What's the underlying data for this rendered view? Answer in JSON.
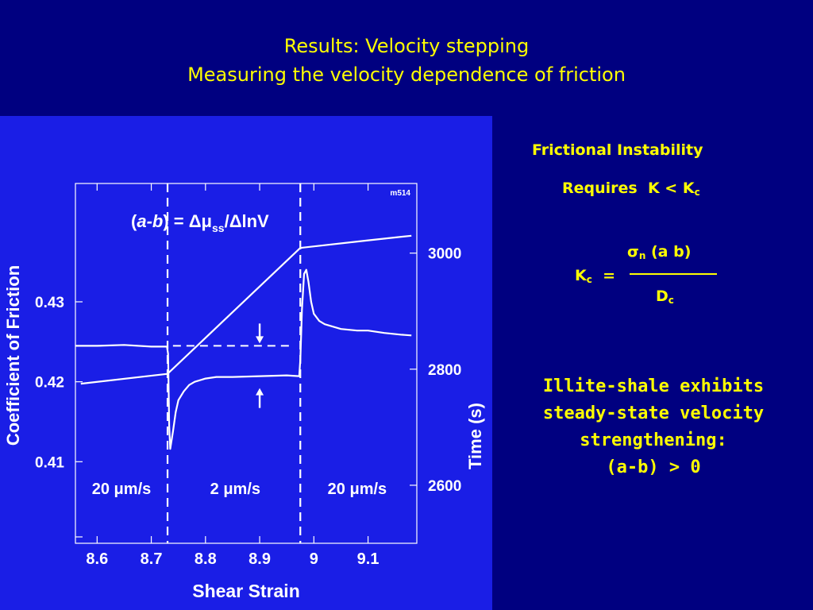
{
  "slide": {
    "title_line1": "Results:   Velocity stepping",
    "title_line2": "Measuring the velocity dependence of friction",
    "instability_title": "Frictional Instability",
    "requires_label": "Requires",
    "requires_expr": "K < K",
    "requires_sub": "c",
    "kc_numerator_glyphs": "",
    "kc_numerator_sigma": "σ",
    "kc_numerator_sigma_sub": "n",
    "kc_numerator_rest": " (a  b)",
    "kc_lhs": "K",
    "kc_lhs_sub": "c",
    "kc_equals": "=",
    "kc_denominator": "D",
    "kc_denominator_sub": "c",
    "conclusion_lines": [
      "Illite-shale exhibits",
      "steady-state velocity",
      "strengthening:",
      "(a-b) > 0"
    ],
    "colors": {
      "background": "#000080",
      "plot_background": "#1a1ee6",
      "text": "#ffff00",
      "plot_ink": "#ffffff"
    }
  },
  "chart_data": {
    "type": "line",
    "xlabel": "Shear Strain",
    "ylabel": "Coefficient of Friction",
    "y2label": "Time (s)",
    "tag": "m514",
    "xlim": [
      8.56,
      9.19
    ],
    "ylim": [
      0.3998,
      0.4448
    ],
    "y2lim": [
      2500,
      3120
    ],
    "xticks": [
      8.6,
      8.7,
      8.8,
      8.9,
      9.0,
      9.1
    ],
    "xtick_labels": [
      "8.6",
      "8.7",
      "8.8",
      "8.9",
      "9",
      "9.1"
    ],
    "yticks": [
      0.43,
      0.42,
      0.41
    ],
    "ytick_labels": [
      "0.43",
      "0.42",
      "0.41"
    ],
    "y2ticks": [
      3000,
      2800,
      2600
    ],
    "y2tick_labels": [
      "3000",
      "2800",
      "2600"
    ],
    "velocity_steps_x": [
      8.73,
      8.975
    ],
    "velocity_labels": [
      {
        "text": "20 μm/s",
        "x": 8.645
      },
      {
        "text": "2 μm/s",
        "x": 8.855
      },
      {
        "text": "20 μm/s",
        "x": 9.08
      }
    ],
    "annotation": "(a-b) = Δμss/ΔlnV",
    "annotation_prefix": "(",
    "annotation_ab": "a-b",
    "annotation_mid": ") = Δμ",
    "annotation_sub": "ss",
    "annotation_tail": "/ΔlnV",
    "series": [
      {
        "name": "friction",
        "x": [
          8.56,
          8.6,
          8.65,
          8.7,
          8.729,
          8.731,
          8.733,
          8.735,
          8.74,
          8.745,
          8.75,
          8.76,
          8.77,
          8.78,
          8.8,
          8.82,
          8.85,
          8.9,
          8.95,
          8.973,
          8.975,
          8.978,
          8.982,
          8.986,
          8.99,
          8.995,
          9.0,
          9.01,
          9.02,
          9.03,
          9.05,
          9.08,
          9.1,
          9.13,
          9.16,
          9.18
        ],
        "y": [
          0.4245,
          0.4245,
          0.4246,
          0.4244,
          0.4244,
          0.4235,
          0.4145,
          0.4116,
          0.4138,
          0.4162,
          0.4177,
          0.4188,
          0.4196,
          0.42,
          0.4204,
          0.4206,
          0.4206,
          0.4207,
          0.4208,
          0.4207,
          0.4228,
          0.429,
          0.4335,
          0.434,
          0.4325,
          0.43,
          0.4285,
          0.4276,
          0.4272,
          0.427,
          0.4266,
          0.4264,
          0.4264,
          0.4261,
          0.4259,
          0.4258
        ]
      },
      {
        "name": "time",
        "x": [
          8.57,
          8.73,
          8.975,
          9.1,
          9.18
        ],
        "y": [
          2775,
          2792,
          3009,
          3022,
          3030
        ]
      }
    ]
  }
}
